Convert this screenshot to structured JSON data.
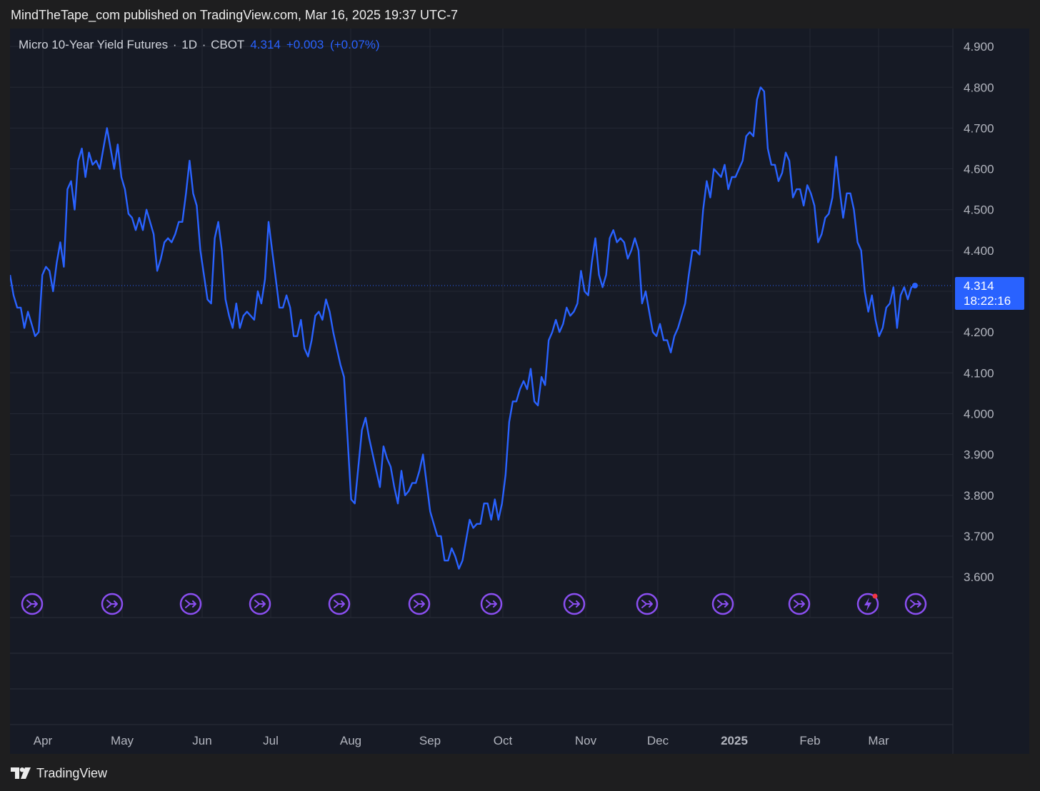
{
  "header": {
    "published_text": "MindTheTape_com published on TradingView.com, Mar 16, 2025 19:37 UTC-7"
  },
  "legend": {
    "symbol": "Micro 10-Year Yield Futures",
    "interval": "1D",
    "exchange": "CBOT",
    "last": "4.314",
    "change": "+0.003",
    "change_pct": "(+0.07%)"
  },
  "price_label": {
    "value": "4.314",
    "countdown": "18:22:16"
  },
  "footer": {
    "brand": "TradingView"
  },
  "colors": {
    "line": "#2962ff",
    "grid": "#242834",
    "background": "#161a25",
    "event_icon": "#8a4ff0",
    "alert_dot": "#f23645"
  },
  "event_icons": [
    "split-arrow-icon",
    "split-arrow-icon",
    "split-arrow-icon",
    "split-arrow-icon",
    "split-arrow-icon",
    "split-arrow-icon",
    "split-arrow-icon",
    "split-arrow-icon",
    "split-arrow-icon",
    "split-arrow-icon",
    "split-arrow-icon",
    "lightning-icon",
    "split-arrow-icon"
  ],
  "chart_data": {
    "type": "line",
    "title": "Micro 10-Year Yield Futures · 1D · CBOT",
    "ylim": [
      3.54,
      4.98
    ],
    "yticks": [
      "4.900",
      "4.800",
      "4.700",
      "4.600",
      "4.500",
      "4.400",
      "4.300",
      "4.200",
      "4.100",
      "4.000",
      "3.900",
      "3.800",
      "3.700",
      "3.600"
    ],
    "xticks": [
      "Apr",
      "May",
      "Jun",
      "Jul",
      "Aug",
      "Sep",
      "Oct",
      "Nov",
      "Dec",
      "2025",
      "Feb",
      "Mar"
    ],
    "grid": true,
    "last_value": 4.314,
    "series": [
      {
        "values": [
          4.34,
          4.29,
          4.26,
          4.26,
          4.21,
          4.25,
          4.22,
          4.19,
          4.2,
          4.34,
          4.36,
          4.35,
          4.3,
          4.37,
          4.42,
          4.36,
          4.55,
          4.57,
          4.5,
          4.62,
          4.65,
          4.58,
          4.64,
          4.61,
          4.62,
          4.6,
          4.65,
          4.7,
          4.65,
          4.6,
          4.66,
          4.58,
          4.55,
          4.49,
          4.48,
          4.45,
          4.48,
          4.45,
          4.5,
          4.47,
          4.44,
          4.35,
          4.38,
          4.42,
          4.43,
          4.42,
          4.44,
          4.47,
          4.47,
          4.54,
          4.62,
          4.54,
          4.51,
          4.4,
          4.34,
          4.28,
          4.27,
          4.43,
          4.47,
          4.4,
          4.28,
          4.24,
          4.21,
          4.27,
          4.21,
          4.24,
          4.25,
          4.24,
          4.23,
          4.3,
          4.27,
          4.33,
          4.47,
          4.4,
          4.33,
          4.26,
          4.26,
          4.29,
          4.26,
          4.19,
          4.19,
          4.23,
          4.16,
          4.14,
          4.18,
          4.24,
          4.25,
          4.23,
          4.28,
          4.25,
          4.2,
          4.16,
          4.12,
          4.09,
          3.94,
          3.79,
          3.78,
          3.87,
          3.96,
          3.99,
          3.94,
          3.9,
          3.86,
          3.82,
          3.92,
          3.89,
          3.87,
          3.82,
          3.78,
          3.86,
          3.8,
          3.81,
          3.83,
          3.83,
          3.86,
          3.9,
          3.83,
          3.76,
          3.73,
          3.7,
          3.7,
          3.64,
          3.64,
          3.67,
          3.65,
          3.62,
          3.64,
          3.69,
          3.74,
          3.72,
          3.73,
          3.73,
          3.78,
          3.78,
          3.74,
          3.79,
          3.74,
          3.78,
          3.85,
          3.98,
          4.03,
          4.03,
          4.06,
          4.08,
          4.06,
          4.11,
          4.03,
          4.02,
          4.09,
          4.07,
          4.18,
          4.2,
          4.23,
          4.2,
          4.22,
          4.26,
          4.24,
          4.25,
          4.27,
          4.35,
          4.3,
          4.29,
          4.37,
          4.43,
          4.34,
          4.31,
          4.34,
          4.43,
          4.45,
          4.42,
          4.43,
          4.42,
          4.38,
          4.4,
          4.43,
          4.4,
          4.27,
          4.3,
          4.25,
          4.2,
          4.19,
          4.22,
          4.18,
          4.18,
          4.15,
          4.19,
          4.21,
          4.24,
          4.27,
          4.34,
          4.4,
          4.4,
          4.39,
          4.5,
          4.57,
          4.53,
          4.6,
          4.59,
          4.58,
          4.61,
          4.55,
          4.58,
          4.58,
          4.6,
          4.62,
          4.68,
          4.69,
          4.68,
          4.77,
          4.8,
          4.79,
          4.65,
          4.61,
          4.61,
          4.57,
          4.59,
          4.64,
          4.62,
          4.53,
          4.55,
          4.55,
          4.51,
          4.56,
          4.54,
          4.51,
          4.42,
          4.44,
          4.48,
          4.49,
          4.53,
          4.63,
          4.55,
          4.48,
          4.54,
          4.54,
          4.5,
          4.42,
          4.4,
          4.3,
          4.25,
          4.29,
          4.23,
          4.19,
          4.21,
          4.26,
          4.27,
          4.31,
          4.21,
          4.29,
          4.31,
          4.28,
          4.31,
          4.314
        ]
      }
    ]
  }
}
